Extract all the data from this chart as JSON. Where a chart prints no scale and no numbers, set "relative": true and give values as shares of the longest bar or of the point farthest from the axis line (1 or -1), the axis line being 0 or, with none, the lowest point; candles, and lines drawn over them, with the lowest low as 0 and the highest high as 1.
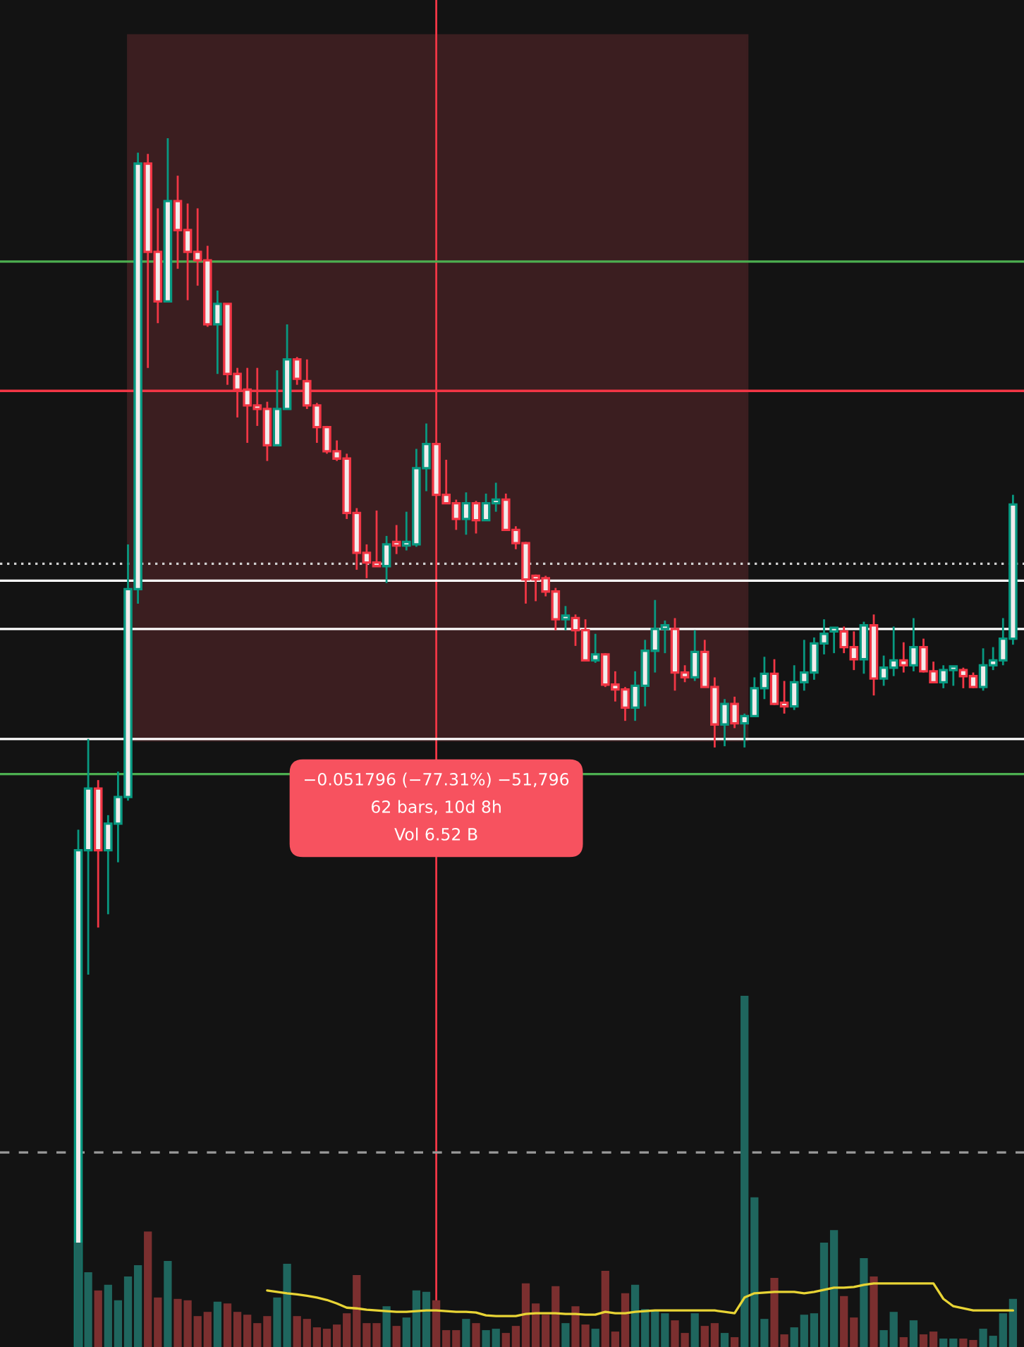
{
  "chart_data": [
    {
      "type": "candlestick",
      "relative": true,
      "categories": [
        null,
        null,
        null,
        null,
        null,
        null,
        null,
        null,
        null,
        null,
        null,
        null,
        null,
        null,
        null,
        null,
        null,
        null,
        null,
        null,
        null,
        null,
        null,
        null,
        null,
        null,
        null,
        null,
        null,
        null,
        null,
        null,
        null,
        null,
        null,
        null,
        null,
        null,
        null,
        null,
        null,
        null,
        null,
        null,
        null,
        null,
        null,
        null,
        null,
        null,
        null,
        null,
        null,
        null,
        null,
        null,
        null,
        null,
        null,
        null,
        null,
        null,
        null,
        null,
        null,
        null,
        null,
        null,
        null,
        null,
        null,
        null,
        null,
        null,
        null,
        null,
        null,
        null,
        null,
        null,
        null,
        null,
        null,
        null,
        null,
        null,
        null,
        null,
        null,
        null,
        null,
        null,
        null,
        null,
        null
      ],
      "ohlc": [
        [
          0,
          0.428,
          0,
          0.411
        ],
        [
          0.411,
          0.503,
          0.308,
          0.462
        ],
        [
          0.462,
          0.469,
          0.347,
          0.411
        ],
        [
          0.411,
          0.44,
          0.358,
          0.433
        ],
        [
          0.433,
          0.476,
          0.401,
          0.455
        ],
        [
          0.455,
          0.664,
          0.452,
          0.627
        ],
        [
          0.627,
          0.988,
          0.615,
          0.979
        ],
        [
          0.979,
          0.987,
          0.81,
          0.906
        ],
        [
          0.906,
          0.942,
          0.847,
          0.865
        ],
        [
          0.865,
          1,
          0.865,
          0.948
        ],
        [
          0.948,
          0.969,
          0.892,
          0.924
        ],
        [
          0.924,
          0.946,
          0.866,
          0.906
        ],
        [
          0.906,
          0.942,
          0.878,
          0.899
        ],
        [
          0.899,
          0.911,
          0.844,
          0.846
        ],
        [
          0.846,
          0.874,
          0.805,
          0.863
        ],
        [
          0.863,
          0.863,
          0.796,
          0.805
        ],
        [
          0.805,
          0.81,
          0.769,
          0.792
        ],
        [
          0.792,
          0.81,
          0.748,
          0.779
        ],
        [
          0.779,
          0.81,
          0.762,
          0.776
        ],
        [
          0.776,
          0.782,
          0.733,
          0.746
        ],
        [
          0.746,
          0.808,
          0.746,
          0.776
        ],
        [
          0.776,
          0.846,
          0.776,
          0.817
        ],
        [
          0.817,
          0.819,
          0.796,
          0.801
        ],
        [
          0.799,
          0.817,
          0.776,
          0.779
        ],
        [
          0.779,
          0.781,
          0.748,
          0.761
        ],
        [
          0.761,
          0.762,
          0.739,
          0.741
        ],
        [
          0.741,
          0.75,
          0.733,
          0.735
        ],
        [
          0.735,
          0.739,
          0.685,
          0.69
        ],
        [
          0.69,
          0.694,
          0.643,
          0.657
        ],
        [
          0.657,
          0.664,
          0.636,
          0.649
        ],
        [
          0.649,
          0.692,
          0.646,
          0.646
        ],
        [
          0.646,
          0.671,
          0.632,
          0.664
        ],
        [
          0.665,
          0.68,
          0.656,
          0.663
        ],
        [
          0.663,
          0.691,
          0.659,
          0.665
        ],
        [
          0.664,
          0.743,
          0.662,
          0.727
        ],
        [
          0.727,
          0.764,
          0.708,
          0.747
        ],
        [
          0.747,
          0.747,
          0.705,
          0.705
        ],
        [
          0.705,
          0.734,
          0.698,
          0.698
        ],
        [
          0.698,
          0.701,
          0.676,
          0.685
        ],
        [
          0.685,
          0.707,
          0.672,
          0.698
        ],
        [
          0.698,
          0.7,
          0.673,
          0.684
        ],
        [
          0.684,
          0.706,
          0.684,
          0.698
        ],
        [
          0.698,
          0.715,
          0.691,
          0.701
        ],
        [
          0.701,
          0.706,
          0.676,
          0.676
        ],
        [
          0.676,
          0.679,
          0.66,
          0.665
        ],
        [
          0.665,
          0.666,
          0.615,
          0.635
        ],
        [
          0.636,
          0.639,
          0.617,
          0.635
        ],
        [
          0.636,
          0.638,
          0.621,
          0.625
        ],
        [
          0.625,
          0.628,
          0.593,
          0.602
        ],
        [
          0.602,
          0.613,
          0.593,
          0.603
        ],
        [
          0.603,
          0.606,
          0.58,
          0.593
        ],
        [
          0.593,
          0.602,
          0.568,
          0.568
        ],
        [
          0.568,
          0.59,
          0.566,
          0.573
        ],
        [
          0.573,
          0.574,
          0.546,
          0.548
        ],
        [
          0.548,
          0.559,
          0.534,
          0.544
        ],
        [
          0.544,
          0.546,
          0.518,
          0.529
        ],
        [
          0.529,
          0.559,
          0.518,
          0.547
        ],
        [
          0.547,
          0.585,
          0.53,
          0.576
        ],
        [
          0.576,
          0.618,
          0.558,
          0.594
        ],
        [
          0.594,
          0.601,
          0.574,
          0.595
        ],
        [
          0.594,
          0.603,
          0.543,
          0.558
        ],
        [
          0.558,
          0.564,
          0.55,
          0.554
        ],
        [
          0.554,
          0.593,
          0.551,
          0.575
        ],
        [
          0.575,
          0.585,
          0.546,
          0.546
        ],
        [
          0.546,
          0.554,
          0.496,
          0.515
        ],
        [
          0.515,
          0.536,
          0.497,
          0.532
        ],
        [
          0.532,
          0.538,
          0.512,
          0.516
        ],
        [
          0.516,
          0.524,
          0.496,
          0.522
        ],
        [
          0.522,
          0.554,
          0.522,
          0.545
        ],
        [
          0.545,
          0.571,
          0.536,
          0.557
        ],
        [
          0.557,
          0.569,
          0.531,
          0.532
        ],
        [
          0.533,
          0.551,
          0.524,
          0.53
        ],
        [
          0.53,
          0.564,
          0.527,
          0.55
        ],
        [
          0.55,
          0.585,
          0.543,
          0.558
        ],
        [
          0.558,
          0.587,
          0.552,
          0.582
        ],
        [
          0.582,
          0.602,
          0.573,
          0.59
        ],
        [
          0.592,
          0.595,
          0.574,
          0.592
        ],
        [
          0.592,
          0.596,
          0.574,
          0.579
        ],
        [
          0.579,
          0.592,
          0.56,
          0.569
        ],
        [
          0.569,
          0.6,
          0.557,
          0.597
        ],
        [
          0.597,
          0.606,
          0.539,
          0.553
        ],
        [
          0.553,
          0.572,
          0.547,
          0.562
        ],
        [
          0.562,
          0.596,
          0.555,
          0.568
        ],
        [
          0.568,
          0.583,
          0.558,
          0.564
        ],
        [
          0.564,
          0.603,
          0.559,
          0.579
        ],
        [
          0.579,
          0.586,
          0.558,
          0.559
        ],
        [
          0.559,
          0.567,
          0.55,
          0.55
        ],
        [
          0.55,
          0.564,
          0.545,
          0.56
        ],
        [
          0.56,
          0.562,
          0.547,
          0.56
        ],
        [
          0.56,
          0.562,
          0.545,
          0.555
        ],
        [
          0.555,
          0.558,
          0.545,
          0.546
        ],
        [
          0.546,
          0.578,
          0.543,
          0.564
        ],
        [
          0.564,
          0.579,
          0.56,
          0.568
        ],
        [
          0.568,
          0.603,
          0.564,
          0.586
        ],
        [
          0.586,
          0.705,
          0.581,
          0.697
        ]
      ],
      "colors": [
        "#089981",
        "#089981",
        "#f23645",
        "#089981",
        "#089981",
        "#089981",
        "#089981",
        "#f23645",
        "#f23645",
        "#089981",
        "#f23645",
        "#f23645",
        "#f23645",
        "#f23645",
        "#089981",
        "#f23645",
        "#f23645",
        "#f23645",
        "#f23645",
        "#f23645",
        "#089981",
        "#089981",
        "#f23645",
        "#f23645",
        "#f23645",
        "#f23645",
        "#f23645",
        "#f23645",
        "#f23645",
        "#f23645",
        "#f23645",
        "#089981",
        "#f23645",
        "#089981",
        "#089981",
        "#089981",
        "#f23645",
        "#f23645",
        "#f23645",
        "#089981",
        "#f23645",
        "#089981",
        "#089981",
        "#f23645",
        "#f23645",
        "#f23645",
        "#f23645",
        "#f23645",
        "#f23645",
        "#089981",
        "#f23645",
        "#f23645",
        "#089981",
        "#f23645",
        "#f23645",
        "#f23645",
        "#089981",
        "#089981",
        "#089981",
        "#089981",
        "#f23645",
        "#f23645",
        "#089981",
        "#f23645",
        "#f23645",
        "#089981",
        "#f23645",
        "#089981",
        "#089981",
        "#089981",
        "#f23645",
        "#f23645",
        "#089981",
        "#089981",
        "#089981",
        "#089981",
        "#089981",
        "#f23645",
        "#f23645",
        "#089981",
        "#f23645",
        "#089981",
        "#089981",
        "#f23645",
        "#089981",
        "#f23645",
        "#f23645",
        "#089981",
        "#089981",
        "#f23645",
        "#f23645",
        "#089981",
        "#089981",
        "#089981",
        "#089981"
      ],
      "ref_lines": [
        {
          "axis": "y",
          "value": 0.898,
          "color": "#4caf50",
          "line_style": "solid"
        },
        {
          "axis": "y",
          "value": 0.474,
          "color": "#4caf50",
          "line_style": "solid"
        },
        {
          "axis": "y",
          "value": 0.503,
          "color": "#ffffff",
          "line_style": "solid"
        },
        {
          "axis": "y",
          "value": 0.634,
          "color": "#ffffff",
          "line_style": "solid"
        },
        {
          "axis": "y",
          "value": 0.594,
          "color": "#ffffff",
          "line_style": "solid"
        },
        {
          "axis": "y",
          "value": 0.648,
          "color": "#d0d0d0",
          "line_style": "dotted"
        },
        {
          "axis": "y",
          "value": 0.791,
          "color": "#f23645",
          "line_style": "solid"
        },
        {
          "axis": "y",
          "value": 0.161,
          "color": "#9a9a9a",
          "line_style": "dashed"
        }
      ],
      "annotations": [
        "−0.051796 (−77.31%) −51,796",
        "62 bars, 10d 8h",
        "Vol 6.52 B"
      ]
    },
    {
      "type": "bar",
      "relative": true,
      "categories": [
        null,
        null,
        null,
        null,
        null,
        null,
        null,
        null,
        null,
        null,
        null,
        null,
        null,
        null,
        null,
        null,
        null,
        null,
        null,
        null,
        null,
        null,
        null,
        null,
        null,
        null,
        null,
        null,
        null,
        null,
        null,
        null,
        null,
        null,
        null,
        null,
        null,
        null,
        null,
        null,
        null,
        null,
        null,
        null,
        null,
        null,
        null,
        null,
        null,
        null,
        null,
        null,
        null,
        null,
        null,
        null,
        null,
        null,
        null,
        null,
        null,
        null,
        null,
        null,
        null,
        null,
        null,
        null,
        null,
        null,
        null,
        null,
        null,
        null,
        null,
        null,
        null,
        null,
        null,
        null,
        null,
        null,
        null,
        null,
        null,
        null,
        null,
        null,
        null,
        null,
        null,
        null,
        null,
        null,
        null
      ],
      "series": [
        {
          "type": "bar",
          "values": [
            0.297,
            0.213,
            0.161,
            0.177,
            0.133,
            0.201,
            0.233,
            0.329,
            0.141,
            0.245,
            0.137,
            0.133,
            0.088,
            0.1,
            0.129,
            0.124,
            0.1,
            0.092,
            0.068,
            0.088,
            0.141,
            0.237,
            0.088,
            0.08,
            0.056,
            0.052,
            0.064,
            0.096,
            0.205,
            0.068,
            0.068,
            0.116,
            0.06,
            0.084,
            0.161,
            0.157,
            0.133,
            0.048,
            0.048,
            0.08,
            0.068,
            0.048,
            0.052,
            0.04,
            0.06,
            0.181,
            0.124,
            0.092,
            0.173,
            0.068,
            0.116,
            0.064,
            0.052,
            0.217,
            0.044,
            0.153,
            0.177,
            0.108,
            0.104,
            0.096,
            0.076,
            0.04,
            0.096,
            0.06,
            0.068,
            0.04,
            0.028,
            1,
            0.426,
            0.08,
            0.197,
            0.036,
            0.056,
            0.092,
            0.096,
            0.297,
            0.333,
            0.145,
            0.084,
            0.253,
            0.201,
            0.048,
            0.1,
            0.028,
            0.076,
            0.036,
            0.044,
            0.024,
            0.024,
            0.024,
            0.02,
            0.052,
            0.032,
            0.096,
            0.137
          ],
          "colors": [
            "#1f665e",
            "#1f665e",
            "#7b2f2f",
            "#1f665e",
            "#1f665e",
            "#1f665e",
            "#1f665e",
            "#7b2f2f",
            "#7b2f2f",
            "#1f665e",
            "#7b2f2f",
            "#7b2f2f",
            "#7b2f2f",
            "#7b2f2f",
            "#1f665e",
            "#7b2f2f",
            "#7b2f2f",
            "#7b2f2f",
            "#7b2f2f",
            "#7b2f2f",
            "#1f665e",
            "#1f665e",
            "#7b2f2f",
            "#7b2f2f",
            "#7b2f2f",
            "#7b2f2f",
            "#7b2f2f",
            "#7b2f2f",
            "#7b2f2f",
            "#7b2f2f",
            "#7b2f2f",
            "#1f665e",
            "#7b2f2f",
            "#1f665e",
            "#1f665e",
            "#1f665e",
            "#7b2f2f",
            "#7b2f2f",
            "#7b2f2f",
            "#1f665e",
            "#7b2f2f",
            "#1f665e",
            "#1f665e",
            "#7b2f2f",
            "#7b2f2f",
            "#7b2f2f",
            "#7b2f2f",
            "#7b2f2f",
            "#7b2f2f",
            "#1f665e",
            "#7b2f2f",
            "#7b2f2f",
            "#1f665e",
            "#7b2f2f",
            "#7b2f2f",
            "#7b2f2f",
            "#1f665e",
            "#1f665e",
            "#1f665e",
            "#1f665e",
            "#7b2f2f",
            "#7b2f2f",
            "#1f665e",
            "#7b2f2f",
            "#7b2f2f",
            "#1f665e",
            "#7b2f2f",
            "#1f665e",
            "#1f665e",
            "#1f665e",
            "#7b2f2f",
            "#7b2f2f",
            "#1f665e",
            "#1f665e",
            "#1f665e",
            "#1f665e",
            "#1f665e",
            "#7b2f2f",
            "#7b2f2f",
            "#1f665e",
            "#7b2f2f",
            "#1f665e",
            "#1f665e",
            "#7b2f2f",
            "#1f665e",
            "#7b2f2f",
            "#7b2f2f",
            "#1f665e",
            "#1f665e",
            "#7b2f2f",
            "#7b2f2f",
            "#1f665e",
            "#1f665e",
            "#1f665e",
            "#1f665e"
          ]
        },
        {
          "type": "line",
          "color": "#e8d435",
          "values": [
            null,
            null,
            null,
            null,
            null,
            null,
            null,
            null,
            null,
            null,
            null,
            null,
            null,
            null,
            null,
            null,
            null,
            null,
            null,
            0.161,
            0.157,
            0.153,
            0.15,
            0.146,
            0.141,
            0.134,
            0.124,
            0.112,
            0.11,
            0.106,
            0.104,
            0.102,
            0.1,
            0.1,
            0.102,
            0.104,
            0.104,
            0.102,
            0.1,
            0.1,
            0.098,
            0.09,
            0.088,
            0.088,
            0.088,
            0.094,
            0.096,
            0.096,
            0.096,
            0.094,
            0.094,
            0.092,
            0.092,
            0.1,
            0.096,
            0.096,
            0.1,
            0.102,
            0.104,
            0.104,
            0.104,
            0.104,
            0.104,
            0.104,
            0.104,
            0.1,
            0.096,
            0.141,
            0.153,
            0.155,
            0.157,
            0.157,
            0.157,
            0.153,
            0.157,
            0.163,
            0.169,
            0.169,
            0.171,
            0.177,
            0.181,
            0.181,
            0.181,
            0.181,
            0.181,
            0.181,
            0.181,
            0.137,
            0.116,
            0.11,
            0.104,
            0.104,
            0.104,
            0.104,
            0.104
          ]
        }
      ]
    }
  ]
}
